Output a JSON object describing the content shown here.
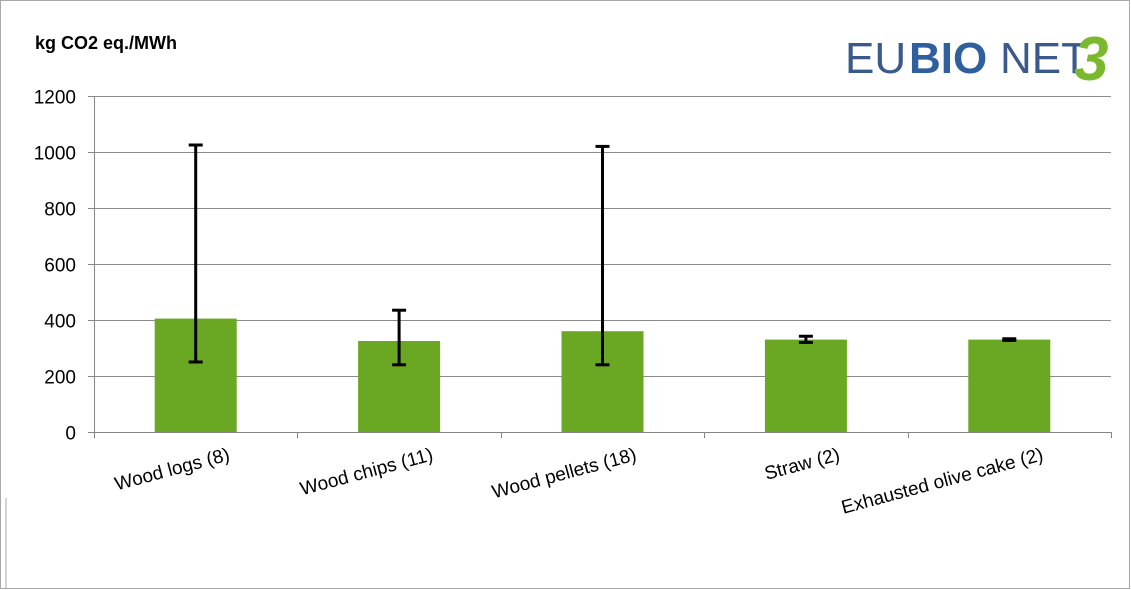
{
  "chart_data": {
    "type": "bar",
    "ylabel": "kg CO2 eq./MWh",
    "categories": [
      "Wood logs (8)",
      "Wood chips (11)",
      "Wood pellets (18)",
      "Straw (2)",
      "Exhausted olive cake (2)"
    ],
    "values": [
      405,
      325,
      360,
      330,
      330
    ],
    "error_min": [
      250,
      240,
      240,
      320,
      327
    ],
    "error_max": [
      1025,
      435,
      1020,
      342,
      333
    ],
    "ylim": [
      0,
      1200
    ],
    "yticks": [
      0,
      200,
      400,
      600,
      800,
      1000,
      1200
    ],
    "grid": true,
    "bar_color": "#6aa823",
    "errorbar_color": "#000000",
    "gridline_color": "#8a8a8a"
  },
  "logo": {
    "prefix": "EU",
    "bold": "BIO",
    "suffix": "NET",
    "number": "3",
    "text_color": "#3a5a8c",
    "accent_color": "#7ab82e"
  }
}
